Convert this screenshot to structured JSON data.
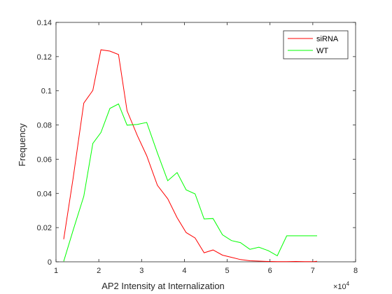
{
  "chart_data": {
    "type": "line",
    "title": "",
    "xlabel": "AP2 Intensity at Internalization",
    "ylabel": "Frequency",
    "x_exponent_label": "×10",
    "x_exponent": "4",
    "xlim": [
      10000,
      80000
    ],
    "ylim": [
      0,
      0.14
    ],
    "xticks": [
      10000,
      20000,
      30000,
      40000,
      50000,
      60000,
      70000,
      80000
    ],
    "xtick_labels": [
      "1",
      "2",
      "3",
      "4",
      "5",
      "6",
      "7",
      "8"
    ],
    "yticks": [
      0,
      0.02,
      0.04,
      0.06,
      0.08,
      0.1,
      0.12,
      0.14
    ],
    "ytick_labels": [
      "0",
      "0.02",
      "0.04",
      "0.06",
      "0.08",
      "0.1",
      "0.12",
      "0.14"
    ],
    "grid": false,
    "legend_position": "top-right",
    "series": [
      {
        "name": "siRNA",
        "color": "#ff0000",
        "x": [
          11800,
          14000,
          16500,
          18600,
          20500,
          22600,
          24600,
          26600,
          29000,
          31200,
          33700,
          36100,
          38300,
          40400,
          42500,
          44600,
          46700,
          48900,
          51000,
          53100,
          55300,
          57400,
          59600,
          61700,
          63900,
          66000,
          68100,
          70200,
          71000
        ],
        "y": [
          0.0132,
          0.049,
          0.0928,
          0.1002,
          0.124,
          0.1232,
          0.1212,
          0.0883,
          0.0738,
          0.062,
          0.0447,
          0.0369,
          0.0258,
          0.0171,
          0.0139,
          0.0053,
          0.0069,
          0.0039,
          0.0026,
          0.0013,
          0.0006,
          0.0004,
          0.0002,
          0.0001,
          0.0001,
          0.0002,
          0.0001,
          0.0001,
          0.0003
        ]
      },
      {
        "name": "WT",
        "color": "#00ff00",
        "x": [
          11800,
          14000,
          16500,
          18600,
          20500,
          22600,
          24600,
          26600,
          29000,
          31200,
          33700,
          36100,
          38300,
          40400,
          42500,
          44600,
          46700,
          48900,
          51000,
          53100,
          55300,
          57400,
          59600,
          61700,
          63900,
          66000,
          68100,
          70200,
          71000
        ],
        "y": [
          0.0003,
          0.0185,
          0.0383,
          0.0692,
          0.0756,
          0.0897,
          0.0923,
          0.0799,
          0.0803,
          0.0815,
          0.0636,
          0.0474,
          0.0522,
          0.0421,
          0.0397,
          0.025,
          0.0253,
          0.0158,
          0.0124,
          0.0112,
          0.0073,
          0.0085,
          0.0065,
          0.0035,
          0.0152,
          0.0152,
          0.0152,
          0.0152,
          0.0152
        ]
      }
    ]
  }
}
